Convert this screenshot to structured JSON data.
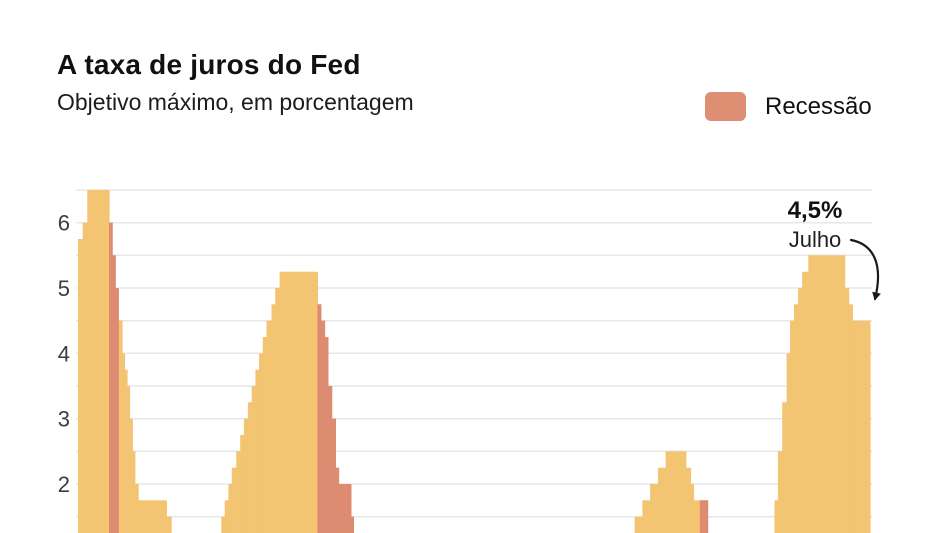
{
  "header": {
    "title": "A taxa de juros do Fed",
    "subtitle": "Objetivo máximo, em porcentagem"
  },
  "legend": {
    "label": "Recessão"
  },
  "annotation": {
    "value": "4,5%",
    "month": "Julho"
  },
  "colors": {
    "area": "#F3C471",
    "recession": "#DD8C72",
    "legend_swatch": "#DE8E73",
    "gridline": "#E7E7E7",
    "tick_text": "#3C3C3C",
    "arrow": "#1A1A1A",
    "background": "#FFFFFF"
  },
  "y_axis": {
    "ticks": [
      {
        "label": "6",
        "value": 6
      },
      {
        "label": "5",
        "value": 5
      },
      {
        "label": "4",
        "value": 4
      },
      {
        "label": "3",
        "value": 3
      },
      {
        "label": "2",
        "value": 2
      }
    ]
  },
  "chart_data": {
    "type": "area",
    "title": "A taxa de juros do Fed",
    "subtitle": "Objetivo máximo, em porcentagem",
    "unit": "percent",
    "grid": true,
    "legend_position": "top-right",
    "legend_entries": [
      "Recessão"
    ],
    "x_start_year": 2000.0,
    "x_end_year": 2025.54,
    "y_visible_range": [
      1.25,
      6.75
    ],
    "gridline_step": 0.5,
    "gridline_values": [
      1.5,
      2,
      2.5,
      3,
      3.5,
      4,
      4.5,
      5,
      5.5,
      6,
      6.5
    ],
    "series_step_points": [
      [
        2000.0,
        5.75
      ],
      [
        2000.15,
        6.0
      ],
      [
        2000.3,
        6.5
      ],
      [
        2001.0,
        6.0
      ],
      [
        2001.1,
        5.5
      ],
      [
        2001.2,
        5.0
      ],
      [
        2001.3,
        4.5
      ],
      [
        2001.42,
        4.0
      ],
      [
        2001.5,
        3.75
      ],
      [
        2001.58,
        3.5
      ],
      [
        2001.66,
        3.0
      ],
      [
        2001.75,
        2.5
      ],
      [
        2001.83,
        2.0
      ],
      [
        2001.94,
        1.75
      ],
      [
        2002.85,
        1.5
      ],
      [
        2003.0,
        1.0
      ],
      [
        2004.5,
        1.25
      ],
      [
        2004.62,
        1.5
      ],
      [
        2004.73,
        1.75
      ],
      [
        2004.85,
        2.0
      ],
      [
        2004.96,
        2.25
      ],
      [
        2005.1,
        2.5
      ],
      [
        2005.23,
        2.75
      ],
      [
        2005.35,
        3.0
      ],
      [
        2005.48,
        3.25
      ],
      [
        2005.6,
        3.5
      ],
      [
        2005.72,
        3.75
      ],
      [
        2005.84,
        4.0
      ],
      [
        2005.96,
        4.25
      ],
      [
        2006.08,
        4.5
      ],
      [
        2006.24,
        4.75
      ],
      [
        2006.36,
        5.0
      ],
      [
        2006.5,
        5.25
      ],
      [
        2007.72,
        4.75
      ],
      [
        2007.83,
        4.5
      ],
      [
        2007.95,
        4.25
      ],
      [
        2008.06,
        3.5
      ],
      [
        2008.18,
        3.0
      ],
      [
        2008.3,
        2.25
      ],
      [
        2008.4,
        2.0
      ],
      [
        2008.8,
        1.5
      ],
      [
        2008.88,
        1.0
      ],
      [
        2008.96,
        0.25
      ],
      [
        2015.95,
        0.5
      ],
      [
        2016.95,
        0.75
      ],
      [
        2017.2,
        1.0
      ],
      [
        2017.45,
        1.25
      ],
      [
        2017.95,
        1.5
      ],
      [
        2018.2,
        1.75
      ],
      [
        2018.45,
        2.0
      ],
      [
        2018.7,
        2.25
      ],
      [
        2018.95,
        2.5
      ],
      [
        2019.6,
        2.25
      ],
      [
        2019.75,
        2.0
      ],
      [
        2019.85,
        1.75
      ],
      [
        2020.3,
        0.25
      ],
      [
        2022.2,
        0.5
      ],
      [
        2022.35,
        1.0
      ],
      [
        2022.46,
        1.75
      ],
      [
        2022.57,
        2.5
      ],
      [
        2022.71,
        3.25
      ],
      [
        2022.85,
        4.0
      ],
      [
        2022.96,
        4.5
      ],
      [
        2023.09,
        4.75
      ],
      [
        2023.22,
        5.0
      ],
      [
        2023.35,
        5.25
      ],
      [
        2023.55,
        5.5
      ],
      [
        2024.72,
        5.0
      ],
      [
        2024.85,
        4.75
      ],
      [
        2024.97,
        4.5
      ]
    ],
    "recession_bands": [
      [
        2001.0,
        2001.3
      ],
      [
        2007.72,
        2009.45
      ],
      [
        2020.05,
        2020.3
      ]
    ],
    "last_value": {
      "rate": 4.5,
      "value_label": "4,5%",
      "month_label": "Julho"
    }
  }
}
